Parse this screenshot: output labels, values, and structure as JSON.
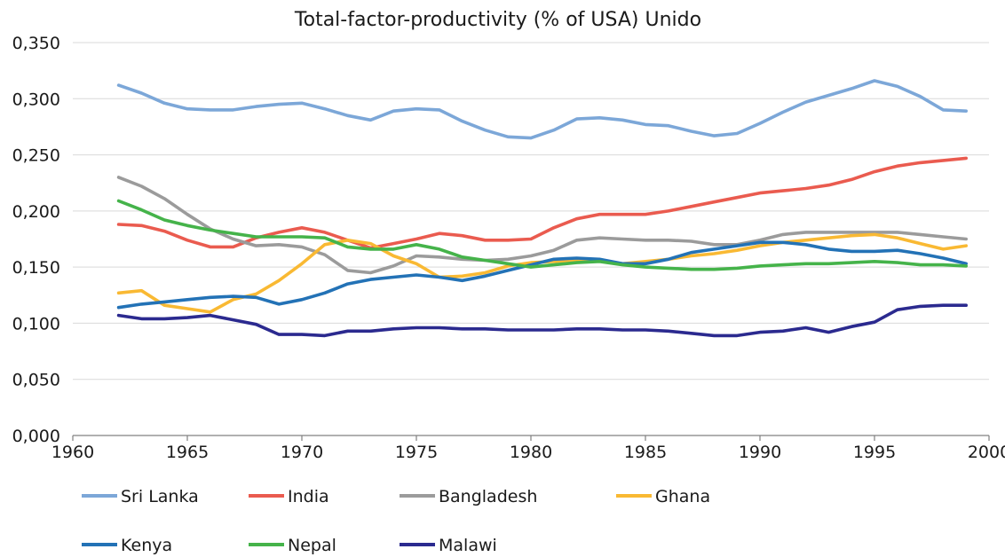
{
  "chart_data": {
    "type": "line",
    "title": "Total-factor-productivity (% of USA) Unido",
    "xlabel": "",
    "ylabel": "",
    "xlim": [
      1960,
      2000
    ],
    "ylim": [
      0,
      0.35
    ],
    "x_ticks": [
      1960,
      1965,
      1970,
      1975,
      1980,
      1985,
      1990,
      1995,
      2000
    ],
    "x_tick_labels": [
      "1960",
      "1965",
      "1970",
      "1975",
      "1980",
      "1985",
      "1990",
      "1995",
      "2000"
    ],
    "y_ticks": [
      0,
      0.05,
      0.1,
      0.15,
      0.2,
      0.25,
      0.3,
      0.35
    ],
    "y_tick_labels": [
      "0,000",
      "0,050",
      "0,100",
      "0,150",
      "0,200",
      "0,250",
      "0,300",
      "0,350"
    ],
    "grid": "horizontal",
    "legend_position": "bottom",
    "x": [
      1962,
      1963,
      1964,
      1965,
      1966,
      1967,
      1968,
      1969,
      1970,
      1971,
      1972,
      1973,
      1974,
      1975,
      1976,
      1977,
      1978,
      1979,
      1980,
      1981,
      1982,
      1983,
      1984,
      1985,
      1986,
      1987,
      1988,
      1989,
      1990,
      1991,
      1992,
      1993,
      1994,
      1995,
      1996,
      1997,
      1998,
      1999
    ],
    "series": [
      {
        "name": "Sri Lanka",
        "color": "#7ca7d8",
        "values": [
          0.312,
          0.305,
          0.296,
          0.291,
          0.29,
          0.29,
          0.293,
          0.295,
          0.296,
          0.291,
          0.285,
          0.281,
          0.289,
          0.291,
          0.29,
          0.28,
          0.272,
          0.266,
          0.265,
          0.272,
          0.282,
          0.283,
          0.281,
          0.277,
          0.276,
          0.271,
          0.267,
          0.269,
          0.278,
          0.288,
          0.297,
          0.303,
          0.309,
          0.316,
          0.311,
          0.302,
          0.29,
          0.289
        ]
      },
      {
        "name": "India",
        "color": "#ea5b4f",
        "values": [
          0.188,
          0.187,
          0.182,
          0.174,
          0.168,
          0.168,
          0.176,
          0.181,
          0.185,
          0.181,
          0.174,
          0.167,
          0.171,
          0.175,
          0.18,
          0.178,
          0.174,
          0.174,
          0.175,
          0.185,
          0.193,
          0.197,
          0.197,
          0.197,
          0.2,
          0.204,
          0.208,
          0.212,
          0.216,
          0.218,
          0.22,
          0.223,
          0.228,
          0.235,
          0.24,
          0.243,
          0.245,
          0.247
        ]
      },
      {
        "name": "Bangladesh",
        "color": "#9b9b9b",
        "values": [
          0.23,
          0.222,
          0.211,
          0.197,
          0.184,
          0.175,
          0.169,
          0.17,
          0.168,
          0.161,
          0.147,
          0.145,
          0.151,
          0.16,
          0.159,
          0.157,
          0.156,
          0.157,
          0.16,
          0.165,
          0.174,
          0.176,
          0.175,
          0.174,
          0.174,
          0.173,
          0.17,
          0.17,
          0.174,
          0.179,
          0.181,
          0.181,
          0.181,
          0.181,
          0.181,
          0.179,
          0.177,
          0.175
        ]
      },
      {
        "name": "Ghana",
        "color": "#f9b933",
        "values": [
          0.127,
          0.129,
          0.116,
          0.113,
          0.11,
          0.121,
          0.126,
          0.138,
          0.153,
          0.17,
          0.174,
          0.171,
          0.16,
          0.153,
          0.141,
          0.142,
          0.145,
          0.151,
          0.154,
          0.155,
          0.156,
          0.156,
          0.153,
          0.155,
          0.157,
          0.16,
          0.162,
          0.165,
          0.169,
          0.172,
          0.174,
          0.176,
          0.178,
          0.179,
          0.176,
          0.171,
          0.166,
          0.169
        ]
      },
      {
        "name": "Kenya",
        "color": "#2372b6",
        "values": [
          0.114,
          0.117,
          0.119,
          0.121,
          0.123,
          0.124,
          0.123,
          0.117,
          0.121,
          0.127,
          0.135,
          0.139,
          0.141,
          0.143,
          0.141,
          0.138,
          0.142,
          0.147,
          0.152,
          0.157,
          0.158,
          0.157,
          0.153,
          0.153,
          0.157,
          0.163,
          0.166,
          0.169,
          0.172,
          0.172,
          0.17,
          0.166,
          0.164,
          0.164,
          0.165,
          0.162,
          0.158,
          0.153
        ]
      },
      {
        "name": "Nepal",
        "color": "#45b34a",
        "values": [
          0.209,
          0.201,
          0.192,
          0.187,
          0.183,
          0.18,
          0.177,
          0.177,
          0.177,
          0.176,
          0.168,
          0.166,
          0.166,
          0.17,
          0.166,
          0.159,
          0.156,
          0.153,
          0.15,
          0.152,
          0.154,
          0.155,
          0.152,
          0.15,
          0.149,
          0.148,
          0.148,
          0.149,
          0.151,
          0.152,
          0.153,
          0.153,
          0.154,
          0.155,
          0.154,
          0.152,
          0.152,
          0.151
        ]
      },
      {
        "name": "Malawi",
        "color": "#2b2a8f",
        "values": [
          0.107,
          0.104,
          0.104,
          0.105,
          0.107,
          0.103,
          0.099,
          0.09,
          0.09,
          0.089,
          0.093,
          0.093,
          0.095,
          0.096,
          0.096,
          0.095,
          0.095,
          0.094,
          0.094,
          0.094,
          0.095,
          0.095,
          0.094,
          0.094,
          0.093,
          0.091,
          0.089,
          0.089,
          0.092,
          0.093,
          0.096,
          0.092,
          0.097,
          0.101,
          0.112,
          0.115,
          0.116,
          0.116
        ]
      }
    ]
  }
}
